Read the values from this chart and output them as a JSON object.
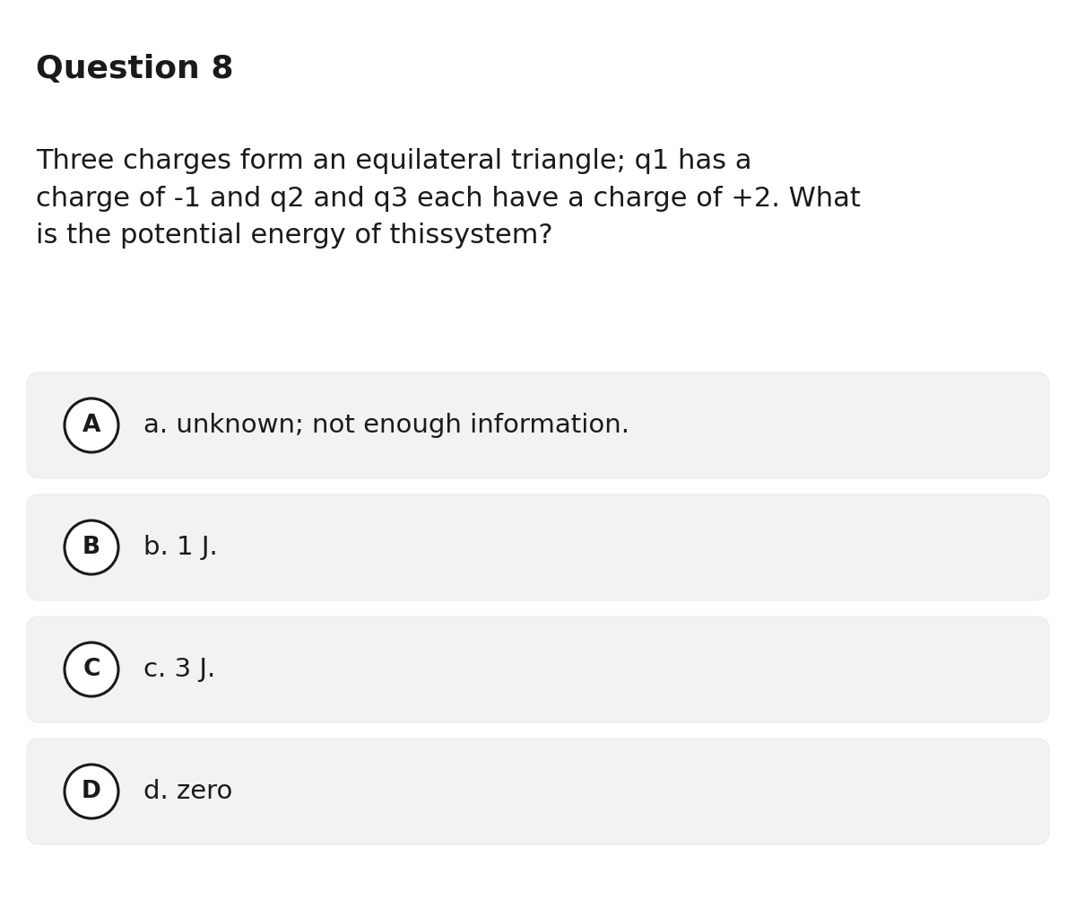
{
  "title": "Question 8",
  "question_text": "Three charges form an equilateral triangle; q1 has a\ncharge of -1 and q2 and q3 each have a charge of +2. What\nis the potential energy of thissystem?",
  "options": [
    {
      "label": "A",
      "text": "a. unknown; not enough information."
    },
    {
      "label": "B",
      "text": "b. 1 J."
    },
    {
      "label": "C",
      "text": "c. 3 J."
    },
    {
      "label": "D",
      "text": "d. zero"
    }
  ],
  "bg_color": "#ffffff",
  "option_bg_color": "#f2f2f2",
  "option_border_color": "#e8e8e8",
  "title_fontsize": 26,
  "question_fontsize": 22,
  "option_fontsize": 21,
  "label_fontsize": 19,
  "text_color": "#1a1a1a",
  "circle_edge_color": "#1a1a1a",
  "circle_face_color": "#ffffff",
  "figwidth": 12.0,
  "figheight": 10.23,
  "dpi": 100
}
